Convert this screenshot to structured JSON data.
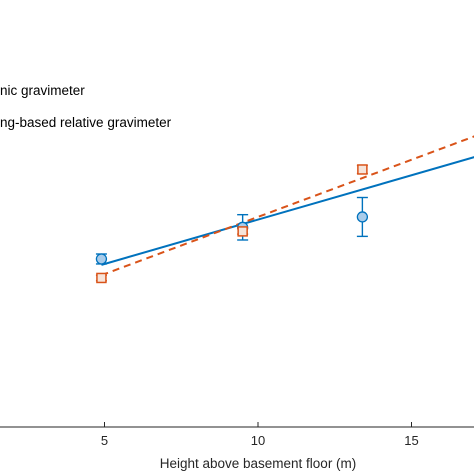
{
  "chart_data": {
    "type": "scatter",
    "xlabel": "Height above basement floor (m)",
    "ylabel": "",
    "xlim": [
      0,
      18.3
    ],
    "xticks": [
      5,
      10,
      15
    ],
    "grid": false,
    "legend_position": "top-left",
    "legend": [
      {
        "label": "nic gravimeter"
      },
      {
        "label": "ng-based relative gravimeter"
      }
    ],
    "series": [
      {
        "color": "#0072BD",
        "fill": "#A9CCEA",
        "marker": "circle",
        "fit_line": "solid",
        "points": [
          {
            "x": 4.9,
            "y": 26.2,
            "err": 1.1
          },
          {
            "x": 9.5,
            "y": 33.2,
            "err": 2.8
          },
          {
            "x": 13.4,
            "y": 35.5,
            "err": 4.3
          }
        ],
        "fit": {
          "x": [
            4.9,
            18.3
          ],
          "y": [
            24.9,
            51.2
          ]
        }
      },
      {
        "color": "#D95319",
        "fill": "#F6E4DA",
        "marker": "square",
        "fit_line": "dashed",
        "points": [
          {
            "x": 4.9,
            "y": 22.0,
            "err": 0.6
          },
          {
            "x": 9.5,
            "y": 32.3,
            "err": 0.6
          },
          {
            "x": 13.4,
            "y": 46.0,
            "err": 0.9
          }
        ],
        "fit": {
          "x": [
            4.9,
            18.3
          ],
          "y": [
            22.6,
            56.5
          ]
        }
      }
    ]
  }
}
